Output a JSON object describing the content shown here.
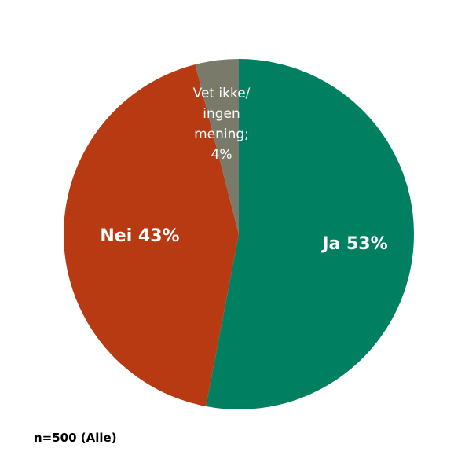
{
  "chart_data": {
    "type": "pie",
    "slices": [
      {
        "name": "Ja",
        "value": 53,
        "color": "#008060",
        "label": "Ja 53%"
      },
      {
        "name": "Nei",
        "value": 43,
        "color": "#b83a12",
        "label": "Nei 43%"
      },
      {
        "name": "Vet ikke/ ingen mening",
        "value": 4,
        "color": "#7a7a6a",
        "label_lines": [
          "Vet ikke/",
          "ingen",
          "mening;",
          "4%"
        ]
      }
    ],
    "note": "n=500 (Alle)"
  }
}
